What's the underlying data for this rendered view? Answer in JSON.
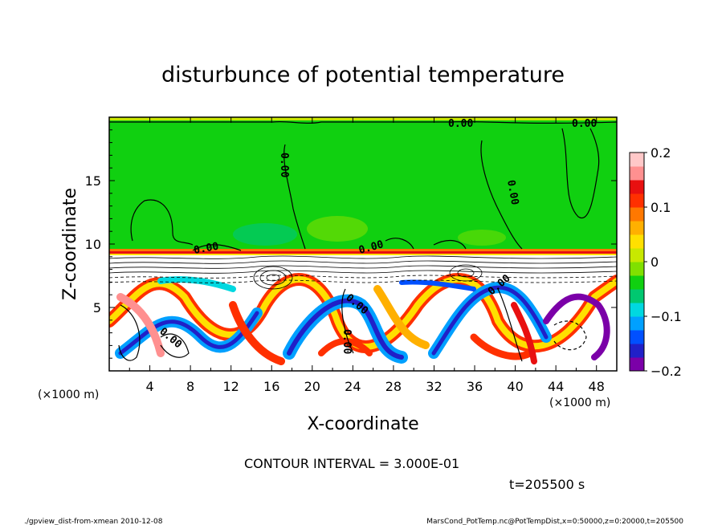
{
  "chart_data": {
    "type": "heatmap",
    "title": "disturbunce of potential temperature",
    "xlabel": "X-coordinate",
    "ylabel": "Z-coordinate",
    "x_unit_left": "(×1000 m)",
    "x_unit_right": "(×1000 m)",
    "xlim": [
      0,
      50
    ],
    "ylim": [
      0,
      20
    ],
    "xticks": [
      "4",
      "8",
      "12",
      "16",
      "20",
      "24",
      "28",
      "32",
      "36",
      "40",
      "44",
      "48"
    ],
    "yticks": [
      "5",
      "10",
      "15"
    ],
    "colorbar": {
      "ticks": [
        "0.2",
        "0.1",
        "0",
        "−0.1",
        "−0.2"
      ],
      "min": -0.2,
      "max": 0.2,
      "colors": [
        "#7b00a8",
        "#2020c8",
        "#0050ff",
        "#00a0ff",
        "#00d8e0",
        "#00c870",
        "#10d010",
        "#80e000",
        "#c8e800",
        "#ffe000",
        "#ffb000",
        "#ff7800",
        "#ff3000",
        "#e81010",
        "#ff9090",
        "#ffc8c8"
      ]
    },
    "contour_labels": [
      "0.00",
      "0.00",
      "0.00",
      "0.00",
      "0.00",
      "0.00",
      "0.00",
      "0.00",
      "0.00",
      "0.00"
    ],
    "contour_interval": "CONTOUR INTERVAL = 3.000E-01",
    "time": "t=205500 s"
  },
  "footer": {
    "left": "./gpview_dist-from-xmean  2010-12-08",
    "right": "MarsCond_PotTemp.nc@PotTempDist,x=0:50000,z=0:20000,t=205500"
  }
}
